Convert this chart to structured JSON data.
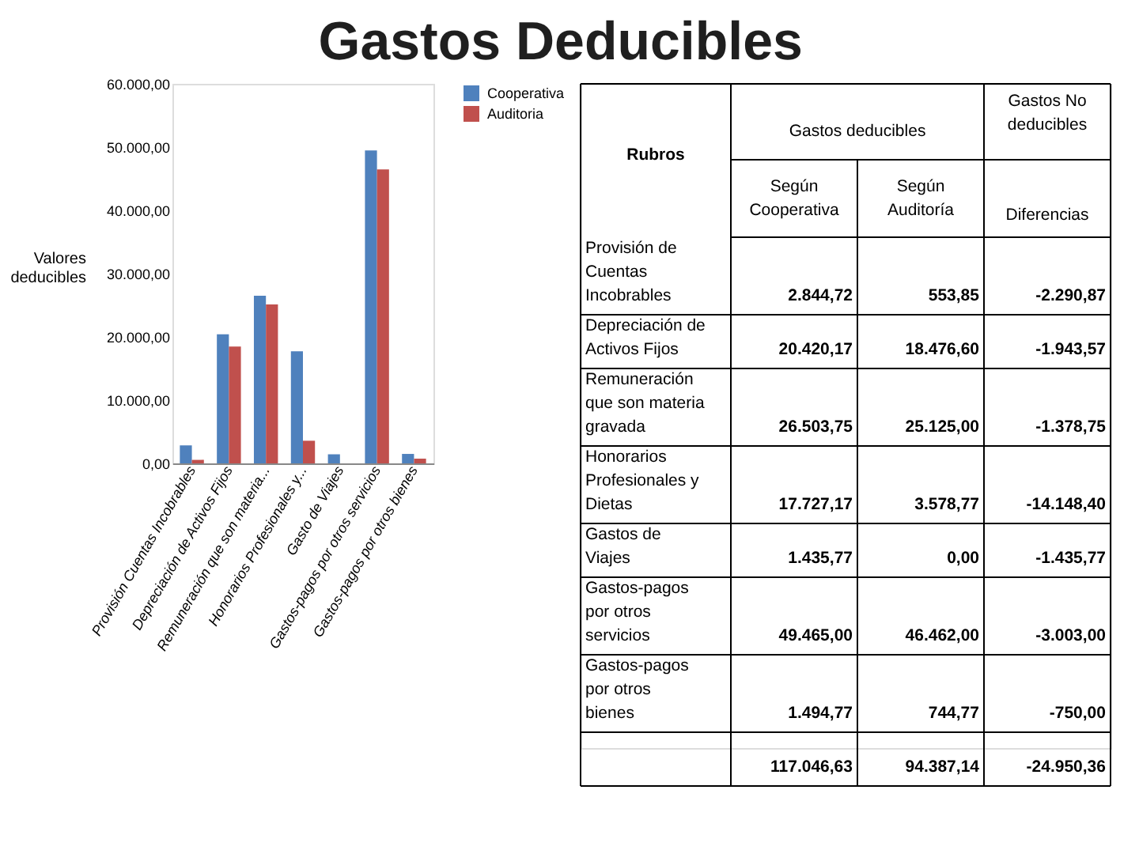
{
  "chart_data": {
    "type": "bar",
    "title": "Gastos Deducibles",
    "ylabel": "Valores deducibles",
    "categories": [
      "Provisión Cuentas Incobrables",
      "Depreciación de Activos Fijos",
      "Remuneración que son materia...",
      "Honorarios Profesionales y...",
      "Gasto de Viajes",
      "Gastos-pagos por otros servicios",
      "Gastos-pagos por otros bienes"
    ],
    "series": [
      {
        "name": "Cooperativa",
        "color": "#4f81bd",
        "values": [
          2844.72,
          20420.17,
          26503.75,
          17727.17,
          1435.77,
          49465.0,
          1494.77
        ]
      },
      {
        "name": "Auditoria",
        "color": "#c0504d",
        "values": [
          553.85,
          18476.6,
          25125.0,
          3578.77,
          0.0,
          46462.0,
          744.77
        ]
      }
    ],
    "ylim": [
      0,
      60000
    ],
    "yticks": [
      {
        "value": 0,
        "label": "0,00"
      },
      {
        "value": 10000,
        "label": "10.000,00"
      },
      {
        "value": 20000,
        "label": "20.000,00"
      },
      {
        "value": 30000,
        "label": "30.000,00"
      },
      {
        "value": 40000,
        "label": "40.000,00"
      },
      {
        "value": 50000,
        "label": "50.000,00"
      },
      {
        "value": 60000,
        "label": "60.000,00"
      }
    ],
    "grid": false,
    "legend": "right",
    "annotations": [
      "Rubros",
      "Gastos deducibles",
      "Gastos No deducibles",
      "Según Cooperativa",
      "Según Auditoría",
      "Diferencias",
      "Provisión de Cuentas Incobrables",
      "Depreciación de Activos Fijos",
      "Remuneración que son materia gravada",
      "Honorarios Profesionales y Dietas",
      "Gastos de Viajes",
      "Gastos-pagos por otros servicios",
      "Gastos-pagos por otros bienes",
      "2.844,72",
      "553,85",
      "-2.290,87",
      "20.420,17",
      "18.476,60",
      "-1.943,57",
      "26.503,75",
      "25.125,00",
      "-1.378,75",
      "17.727,17",
      "3.578,77",
      "-14.148,40",
      "1.435,77",
      "0,00",
      "-1.435,77",
      "49.465,00",
      "46.462,00",
      "-3.003,00",
      "1.494,77",
      "744,77",
      "-750,00",
      "117.046,63",
      "94.387,14",
      "-24.950,36"
    ]
  }
}
